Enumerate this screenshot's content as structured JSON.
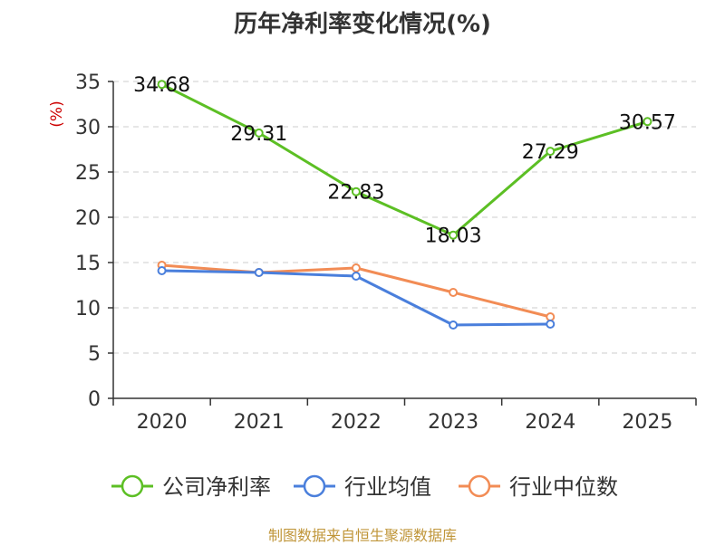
{
  "title": "历年净利率变化情况(%)",
  "footer": "制图数据来自恒生聚源数据库",
  "colors": {
    "company": "#5cbf24",
    "industry_avg": "#4a7fdc",
    "industry_median": "#f28c55",
    "ylabel": "#cc0000",
    "axis": "#333333",
    "grid": "#cccccc"
  },
  "chart_data": {
    "type": "line",
    "title": "历年净利率变化情况(%)",
    "ylabel": "(%)",
    "xlabel": "",
    "categories": [
      "2020",
      "2021",
      "2022",
      "2023",
      "2024",
      "2025"
    ],
    "ylim": [
      0,
      35
    ],
    "yticks": [
      0,
      5,
      10,
      15,
      20,
      25,
      30,
      35
    ],
    "grid": true,
    "legend_position": "bottom",
    "series": [
      {
        "name": "公司净利率",
        "key": "company",
        "values": [
          34.68,
          29.31,
          22.83,
          18.03,
          27.29,
          30.57
        ],
        "labels": [
          "34.68",
          "29.31",
          "22.83",
          "18.03",
          "27.29",
          "30.57"
        ]
      },
      {
        "name": "行业均值",
        "key": "industry_avg",
        "values": [
          14.1,
          13.9,
          13.5,
          8.1,
          8.2,
          null
        ],
        "labels": null
      },
      {
        "name": "行业中位数",
        "key": "industry_median",
        "values": [
          14.7,
          13.9,
          14.4,
          11.7,
          9.0,
          null
        ],
        "labels": null
      }
    ]
  }
}
